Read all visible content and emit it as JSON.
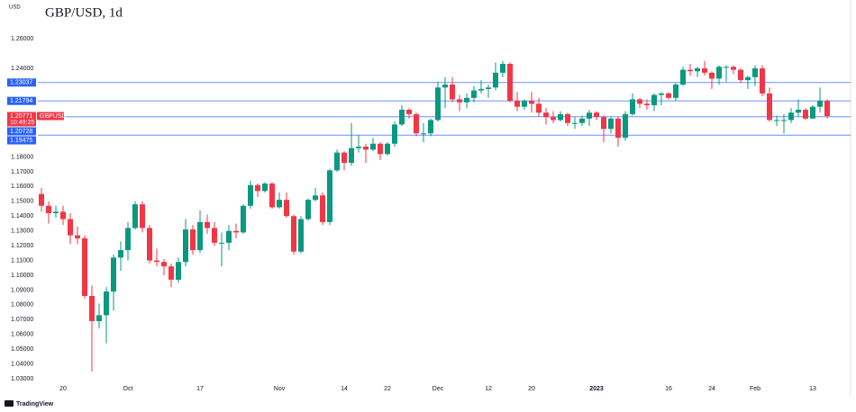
{
  "header": {
    "unit": "USD",
    "logo": "TradingView"
  },
  "chart_data": {
    "type": "candlestick",
    "title": "GBP/USD, 1d",
    "categories": [
      null,
      null,
      null,
      "20",
      null,
      null,
      null,
      null,
      null,
      null,
      null,
      null,
      "Oct",
      null,
      null,
      null,
      null,
      null,
      null,
      null,
      null,
      null,
      "17",
      null,
      null,
      null,
      null,
      null,
      null,
      null,
      null,
      null,
      null,
      "Nov",
      null,
      null,
      null,
      null,
      null,
      null,
      null,
      null,
      "14",
      null,
      null,
      null,
      null,
      null,
      "22",
      null,
      null,
      null,
      null,
      null,
      null,
      "Dec",
      null,
      null,
      null,
      null,
      null,
      null,
      "12",
      null,
      null,
      null,
      null,
      null,
      "20",
      null,
      null,
      null,
      null,
      null,
      null,
      null,
      null,
      "2023",
      null,
      null,
      null,
      null,
      null,
      null,
      null,
      null,
      null,
      "16",
      null,
      null,
      null,
      null,
      null,
      "24",
      null,
      null,
      null,
      null,
      null,
      "Feb",
      null,
      null,
      null,
      null,
      null,
      null,
      null,
      "13",
      null,
      null
    ],
    "series": [
      {
        "name": "GBPUSD",
        "up_color": "#089981",
        "down_color": "#f23645",
        "countdown": "10:49:25",
        "open": [
          1.155,
          1.147,
          1.142,
          1.143,
          1.138,
          1.127,
          1.125,
          1.086,
          1.069,
          1.073,
          1.089,
          1.112,
          1.117,
          1.132,
          1.148,
          1.132,
          1.11,
          1.109,
          1.106,
          1.097,
          1.109,
          1.131,
          1.117,
          1.136,
          1.132,
          1.122,
          1.122,
          1.13,
          1.129,
          1.147,
          1.161,
          1.157,
          1.162,
          1.146,
          1.151,
          1.14,
          1.116,
          1.138,
          1.151,
          1.154,
          1.136,
          1.171,
          1.183,
          1.176,
          1.186,
          1.187,
          1.185,
          1.189,
          1.182,
          1.189,
          1.202,
          1.212,
          1.209,
          1.196,
          1.196,
          1.205,
          1.227,
          1.229,
          1.219,
          1.217,
          1.22,
          1.225,
          1.226,
          1.227,
          1.237,
          1.243,
          1.218,
          1.214,
          1.218,
          1.216,
          1.21,
          1.207,
          1.205,
          1.209,
          1.203,
          1.203,
          1.206,
          1.21,
          1.207,
          1.199,
          1.206,
          1.193,
          1.209,
          1.219,
          1.216,
          1.215,
          1.222,
          1.223,
          1.22,
          1.229,
          1.239,
          1.238,
          1.24,
          1.237,
          1.233,
          1.241,
          1.241,
          1.239,
          1.232,
          1.234,
          1.24,
          1.223,
          1.205,
          1.205,
          1.205,
          1.21,
          1.212,
          1.206,
          1.214,
          1.218
        ],
        "high": [
          1.159,
          1.15,
          1.147,
          1.147,
          1.142,
          1.133,
          1.127,
          1.093,
          1.081,
          1.092,
          1.114,
          1.123,
          1.136,
          1.15,
          1.15,
          1.134,
          1.118,
          1.111,
          1.108,
          1.112,
          1.138,
          1.134,
          1.144,
          1.141,
          1.136,
          1.129,
          1.134,
          1.135,
          1.148,
          1.164,
          1.162,
          1.163,
          1.163,
          1.156,
          1.156,
          1.141,
          1.14,
          1.152,
          1.159,
          1.156,
          1.172,
          1.185,
          1.184,
          1.203,
          1.195,
          1.189,
          1.193,
          1.19,
          1.19,
          1.204,
          1.215,
          1.213,
          1.21,
          1.203,
          1.206,
          1.231,
          1.234,
          1.234,
          1.222,
          1.223,
          1.228,
          1.232,
          1.229,
          1.244,
          1.245,
          1.244,
          1.224,
          1.219,
          1.224,
          1.22,
          1.213,
          1.211,
          1.211,
          1.21,
          1.207,
          1.208,
          1.212,
          1.211,
          1.208,
          1.207,
          1.207,
          1.211,
          1.223,
          1.22,
          1.219,
          1.223,
          1.224,
          1.224,
          1.23,
          1.241,
          1.243,
          1.241,
          1.245,
          1.238,
          1.242,
          1.242,
          1.242,
          1.24,
          1.235,
          1.242,
          1.242,
          1.227,
          1.208,
          1.209,
          1.213,
          1.219,
          1.213,
          1.215,
          1.227,
          1.219
        ],
        "low": [
          1.143,
          1.135,
          1.139,
          1.134,
          1.121,
          1.121,
          1.084,
          1.035,
          1.064,
          1.054,
          1.076,
          1.103,
          1.11,
          1.131,
          1.129,
          1.108,
          1.106,
          1.1,
          1.092,
          1.095,
          1.106,
          1.114,
          1.115,
          1.128,
          1.12,
          1.106,
          1.117,
          1.125,
          1.128,
          1.145,
          1.153,
          1.156,
          1.145,
          1.145,
          1.139,
          1.114,
          1.115,
          1.137,
          1.15,
          1.134,
          1.134,
          1.17,
          1.171,
          1.174,
          1.183,
          1.176,
          1.184,
          1.178,
          1.181,
          1.187,
          1.201,
          1.206,
          1.194,
          1.19,
          1.194,
          1.204,
          1.213,
          1.217,
          1.211,
          1.213,
          1.217,
          1.223,
          1.22,
          1.225,
          1.234,
          1.217,
          1.211,
          1.212,
          1.21,
          1.207,
          1.202,
          1.203,
          1.204,
          1.201,
          1.199,
          1.201,
          1.201,
          1.205,
          1.19,
          1.196,
          1.187,
          1.191,
          1.208,
          1.213,
          1.212,
          1.211,
          1.215,
          1.219,
          1.218,
          1.228,
          1.235,
          1.234,
          1.235,
          1.226,
          1.229,
          1.231,
          1.236,
          1.23,
          1.226,
          1.228,
          1.221,
          1.204,
          1.201,
          1.196,
          1.203,
          1.207,
          1.205,
          1.206,
          1.21,
          1.206
        ],
        "close": [
          1.147,
          1.142,
          1.143,
          1.138,
          1.127,
          1.125,
          1.086,
          1.069,
          1.073,
          1.089,
          1.112,
          1.117,
          1.132,
          1.148,
          1.132,
          1.11,
          1.109,
          1.106,
          1.097,
          1.109,
          1.131,
          1.117,
          1.136,
          1.132,
          1.122,
          1.122,
          1.13,
          1.129,
          1.147,
          1.161,
          1.157,
          1.162,
          1.146,
          1.151,
          1.14,
          1.116,
          1.138,
          1.151,
          1.154,
          1.136,
          1.171,
          1.183,
          1.176,
          1.186,
          1.187,
          1.185,
          1.189,
          1.182,
          1.189,
          1.202,
          1.212,
          1.209,
          1.196,
          1.196,
          1.205,
          1.227,
          1.229,
          1.219,
          1.217,
          1.22,
          1.225,
          1.226,
          1.227,
          1.237,
          1.243,
          1.218,
          1.214,
          1.218,
          1.216,
          1.21,
          1.207,
          1.205,
          1.209,
          1.203,
          1.203,
          1.206,
          1.21,
          1.207,
          1.199,
          1.206,
          1.193,
          1.209,
          1.219,
          1.216,
          1.215,
          1.222,
          1.223,
          1.22,
          1.229,
          1.239,
          1.238,
          1.24,
          1.237,
          1.233,
          1.241,
          1.241,
          1.239,
          1.232,
          1.234,
          1.24,
          1.223,
          1.205,
          1.205,
          1.205,
          1.21,
          1.212,
          1.206,
          1.214,
          1.218,
          1.20771
        ]
      }
    ],
    "ylim": [
      1.0276,
      1.2862
    ],
    "yticks": [
      {
        "value": 1.26,
        "label": "1.26000"
      },
      {
        "value": 1.24,
        "label": "1.24000"
      },
      {
        "value": 1.18,
        "label": "1.18000"
      },
      {
        "value": 1.17,
        "label": "1.17000"
      },
      {
        "value": 1.16,
        "label": "1.16000"
      },
      {
        "value": 1.15,
        "label": "1.15000"
      },
      {
        "value": 1.14,
        "label": "1.14000"
      },
      {
        "value": 1.13,
        "label": "1.13000"
      },
      {
        "value": 1.12,
        "label": "1.12000"
      },
      {
        "value": 1.11,
        "label": "1.11000"
      },
      {
        "value": 1.1,
        "label": "1.10000"
      },
      {
        "value": 1.09,
        "label": "1.09000"
      },
      {
        "value": 1.08,
        "label": "1.08000"
      },
      {
        "value": 1.07,
        "label": "1.07000"
      },
      {
        "value": 1.06,
        "label": "1.06000"
      },
      {
        "value": 1.05,
        "label": "1.05000"
      },
      {
        "value": 1.04,
        "label": "1.04000"
      },
      {
        "value": 1.03,
        "label": "1.03000"
      }
    ],
    "price_lines": [
      1.23037,
      1.21794,
      1.20728,
      1.19475
    ],
    "price_line_color": "#2962ff"
  }
}
